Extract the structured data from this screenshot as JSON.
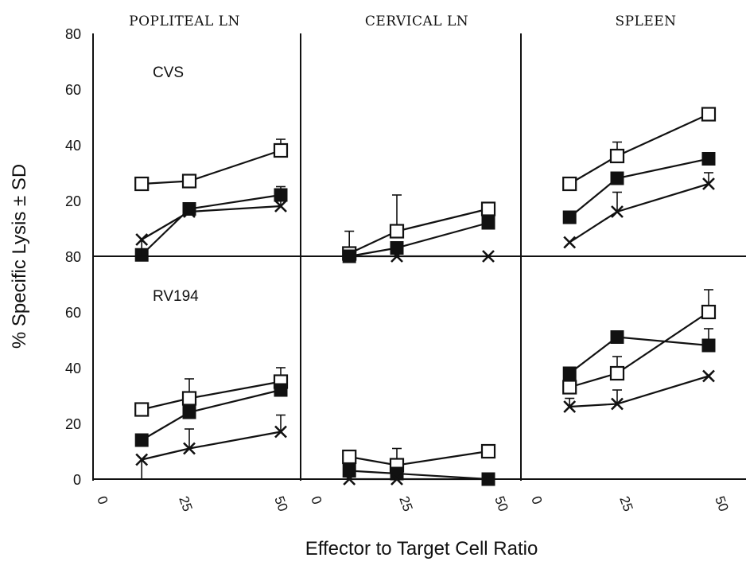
{
  "colors": {
    "ink": "#111111",
    "background": "#ffffff"
  },
  "figure": {
    "ylabel": "% Specific Lysis ± SD",
    "xlabel": "Effector to Target Cell Ratio",
    "columns": [
      "POPLITEAL LN",
      "CERVICAL LN",
      "SPLEEN"
    ],
    "rows": [
      "CVS",
      "RV194"
    ],
    "y_ticks_top": [
      "80",
      "60",
      "40",
      "20"
    ],
    "y_ticks_bottom": [
      "80",
      "60",
      "40",
      "20",
      "0"
    ],
    "x_ticks": [
      "0",
      "25",
      "50"
    ]
  },
  "chart_data": [
    {
      "type": "line",
      "panel": "POPLITEAL LN",
      "row_label": "CVS",
      "xlim": [
        0,
        55
      ],
      "ylim": [
        0,
        80
      ],
      "x": [
        12,
        25,
        50
      ],
      "series": [
        {
          "marker": "open-square",
          "values": [
            26,
            27,
            38
          ],
          "err": [
            null,
            null,
            4
          ]
        },
        {
          "marker": "filled-square",
          "values": [
            0.5,
            17,
            22
          ],
          "err": [
            null,
            null,
            null
          ]
        },
        {
          "marker": "cross",
          "values": [
            6,
            16,
            18
          ],
          "err": [
            11,
            null,
            7
          ]
        }
      ]
    },
    {
      "type": "line",
      "panel": "CERVICAL LN",
      "row_label": "CVS",
      "xlim": [
        0,
        55
      ],
      "ylim": [
        0,
        80
      ],
      "x": [
        12,
        25,
        50
      ],
      "series": [
        {
          "marker": "open-square",
          "values": [
            1,
            9,
            17
          ],
          "err": [
            8,
            13,
            null
          ]
        },
        {
          "marker": "filled-square",
          "values": [
            0,
            3,
            12
          ],
          "err": [
            null,
            null,
            null
          ]
        },
        {
          "marker": "cross",
          "values": [
            0,
            0,
            0
          ],
          "err": [
            null,
            null,
            null
          ]
        }
      ]
    },
    {
      "type": "line",
      "panel": "SPLEEN",
      "row_label": "CVS",
      "xlim": [
        0,
        55
      ],
      "ylim": [
        0,
        80
      ],
      "x": [
        12,
        25,
        50
      ],
      "series": [
        {
          "marker": "open-square",
          "values": [
            26,
            36,
            51
          ],
          "err": [
            null,
            5,
            null
          ]
        },
        {
          "marker": "filled-square",
          "values": [
            14,
            28,
            35
          ],
          "err": [
            null,
            null,
            null
          ]
        },
        {
          "marker": "cross",
          "values": [
            5,
            16,
            26
          ],
          "err": [
            null,
            7,
            4
          ]
        }
      ]
    },
    {
      "type": "line",
      "panel": "POPLITEAL LN",
      "row_label": "RV194",
      "xlim": [
        0,
        55
      ],
      "ylim": [
        0,
        80
      ],
      "x": [
        12,
        25,
        50
      ],
      "series": [
        {
          "marker": "open-square",
          "values": [
            25,
            29,
            35
          ],
          "err": [
            null,
            7,
            5
          ]
        },
        {
          "marker": "filled-square",
          "values": [
            14,
            24,
            32
          ],
          "err": [
            null,
            null,
            null
          ]
        },
        {
          "marker": "cross",
          "values": [
            7,
            11,
            17
          ],
          "err": [
            7,
            7,
            6
          ]
        }
      ]
    },
    {
      "type": "line",
      "panel": "CERVICAL LN",
      "row_label": "RV194",
      "xlim": [
        0,
        55
      ],
      "ylim": [
        0,
        80
      ],
      "x": [
        12,
        25,
        50
      ],
      "series": [
        {
          "marker": "open-square",
          "values": [
            8,
            5,
            10
          ],
          "err": [
            null,
            6,
            null
          ]
        },
        {
          "marker": "filled-square",
          "values": [
            3,
            2,
            0
          ],
          "err": [
            null,
            null,
            null
          ]
        },
        {
          "marker": "cross",
          "values": [
            0,
            0,
            0
          ],
          "err": [
            null,
            null,
            null
          ]
        }
      ]
    },
    {
      "type": "line",
      "panel": "SPLEEN",
      "row_label": "RV194",
      "xlim": [
        0,
        55
      ],
      "ylim": [
        0,
        80
      ],
      "x": [
        12,
        25,
        50
      ],
      "series": [
        {
          "marker": "open-square",
          "values": [
            33,
            38,
            60
          ],
          "err": [
            null,
            6,
            8
          ]
        },
        {
          "marker": "filled-square",
          "values": [
            38,
            51,
            48
          ],
          "err": [
            null,
            null,
            6
          ]
        },
        {
          "marker": "cross",
          "values": [
            26,
            27,
            37
          ],
          "err": [
            3,
            5,
            null
          ]
        }
      ]
    }
  ]
}
